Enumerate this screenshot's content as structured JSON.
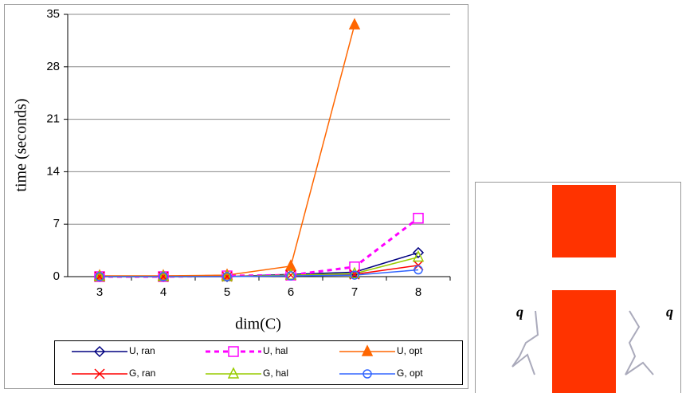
{
  "chart_data": {
    "type": "line",
    "x_label": "dim(C)",
    "y_label": "time (seconds)",
    "categories": [
      "3",
      "4",
      "5",
      "6",
      "7",
      "8"
    ],
    "ylim": [
      0,
      35
    ],
    "yticks": [
      0,
      7,
      14,
      21,
      28,
      35
    ],
    "grid": true,
    "series": [
      {
        "name": "U, ran",
        "color": "#000080",
        "marker": "diamond",
        "dashed": false,
        "values": [
          0,
          0,
          0,
          0.3,
          0.6,
          3.2
        ]
      },
      {
        "name": "U, hal",
        "color": "#ff00ff",
        "marker": "square",
        "dashed": true,
        "values": [
          0,
          0,
          0.1,
          0.2,
          1.3,
          7.8
        ]
      },
      {
        "name": "U, opt",
        "color": "#ff6600",
        "marker": "triangle-filled",
        "dashed": false,
        "values": [
          0.1,
          0.1,
          0.2,
          1.4,
          33.6,
          null
        ]
      },
      {
        "name": "G, ran",
        "color": "#ff0000",
        "marker": "x",
        "dashed": false,
        "values": [
          0,
          0,
          0,
          0.2,
          0.3,
          1.5
        ]
      },
      {
        "name": "G, hal",
        "color": "#99cc00",
        "marker": "triangle",
        "dashed": false,
        "values": [
          0,
          0,
          0,
          0.2,
          0.4,
          2.6
        ]
      },
      {
        "name": "G, opt",
        "color": "#3366ff",
        "marker": "circle",
        "dashed": false,
        "values": [
          0,
          0,
          0,
          0.1,
          0.2,
          0.9
        ]
      }
    ]
  },
  "diagram": {
    "labels": [
      "q",
      "q"
    ]
  }
}
